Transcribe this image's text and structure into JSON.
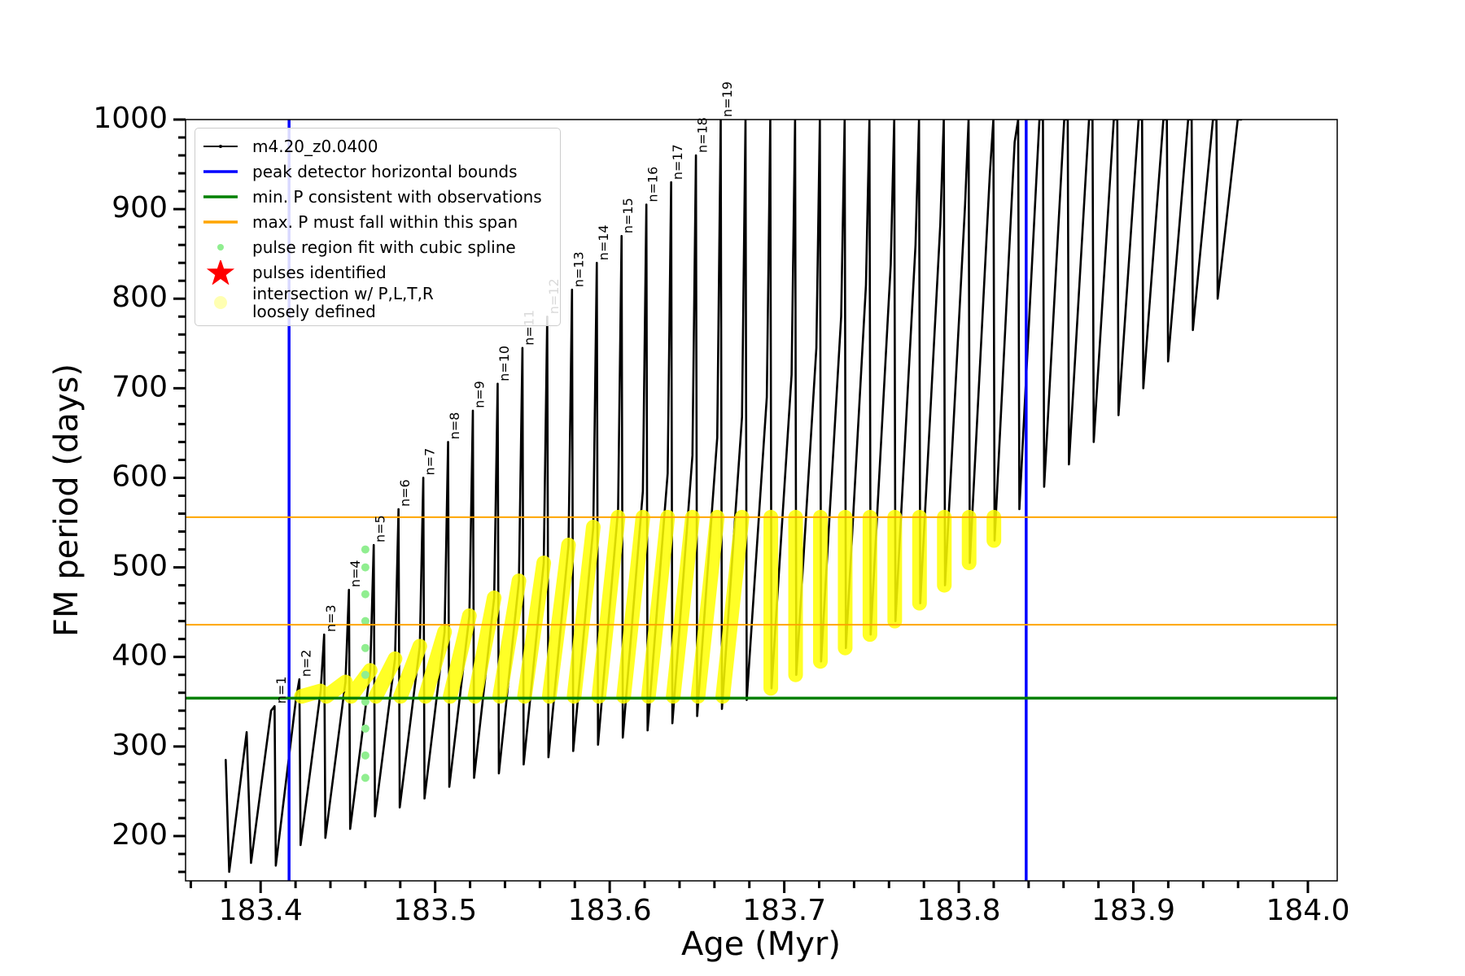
{
  "chart_data": {
    "type": "line",
    "x_label": "Age (Myr)",
    "y_label": "FM period (days)",
    "xlim": [
      183.357,
      184.0168
    ],
    "ylim": [
      150,
      1000
    ],
    "xticks": [
      183.4,
      183.5,
      183.6,
      183.7,
      183.8,
      183.9,
      {
        "value": 184,
        "label": "184.0"
      }
    ],
    "x_minor_ticks": [
      183.36,
      183.38,
      183.42,
      183.44,
      183.46,
      183.48,
      183.52,
      183.54,
      183.56,
      183.58,
      183.62,
      183.64,
      183.66,
      183.68,
      183.72,
      183.74,
      183.76,
      183.78,
      183.82,
      183.84,
      183.86,
      183.88,
      183.92,
      183.94,
      183.96,
      183.98
    ],
    "yticks": [
      200,
      300,
      400,
      500,
      600,
      700,
      800,
      900,
      1000
    ],
    "y_minor_ticks": [
      160,
      180,
      220,
      240,
      260,
      280,
      320,
      340,
      360,
      380,
      420,
      440,
      460,
      480,
      520,
      540,
      560,
      580,
      620,
      640,
      660,
      680,
      720,
      740,
      760,
      780,
      820,
      840,
      860,
      880,
      920,
      940,
      960,
      980
    ],
    "legend": "upper left",
    "pulse_labels": [
      "n=1",
      "n=2",
      "n=3",
      "n=4",
      "n=5",
      "n=6",
      "n=7",
      "n=8",
      "n=9",
      "n=10",
      "n=11",
      "n=12",
      "n=13",
      "n=14",
      "n=15",
      "n=16",
      "n=17",
      "n=18",
      "n=19"
    ],
    "series": [
      {
        "name": "m4.20_z0.0400",
        "type": "line",
        "color": "#000000",
        "marker": ".",
        "x": [
          183.38,
          183.382,
          183.392,
          183.3945,
          183.406,
          183.408,
          183.4087,
          183.4202,
          183.4222,
          183.4229,
          183.4344,
          183.4364,
          183.4371,
          183.4486,
          183.4506,
          183.4513,
          183.4628,
          183.4648,
          183.4655,
          183.477,
          183.479,
          183.4797,
          183.4912,
          183.4932,
          183.4939,
          183.5054,
          183.5074,
          183.5081,
          183.5196,
          183.5216,
          183.5223,
          183.5338,
          183.5358,
          183.5365,
          183.548,
          183.55,
          183.5507,
          183.5622,
          183.5642,
          183.5649,
          183.5764,
          183.5784,
          183.5791,
          183.5906,
          183.5926,
          183.5933,
          183.6048,
          183.6068,
          183.6075,
          183.619,
          183.621,
          183.6217,
          183.6332,
          183.6352,
          183.6359,
          183.6474,
          183.6494,
          183.6501,
          183.6616,
          183.6636,
          183.6643,
          183.6758,
          183.6778,
          183.6785,
          183.69,
          183.692,
          183.6927,
          183.7042,
          183.7062,
          183.7069,
          183.7184,
          183.7204,
          183.7211,
          183.7326,
          183.7346,
          183.7353,
          183.7468,
          183.7488,
          183.7495,
          183.761,
          183.763,
          183.7637,
          183.7752,
          183.7772,
          183.7779,
          183.7894,
          183.7914,
          183.7921,
          183.8036,
          183.8056,
          183.8063,
          183.8178,
          183.8198,
          183.8205,
          183.832,
          183.834,
          183.8347,
          183.8462,
          183.8482,
          183.8489,
          183.8604,
          183.8624,
          183.8631,
          183.8746,
          183.8766,
          183.8773,
          183.8888,
          183.8908,
          183.8915,
          183.903,
          183.905,
          183.9057,
          183.9172,
          183.9192,
          183.9199,
          183.9314,
          183.9334,
          183.9341,
          183.9456,
          183.9476,
          183.9483,
          183.9598,
          183.9618
        ],
        "values": [
          285,
          160,
          316,
          170,
          340,
          345,
          167,
          352,
          375,
          190,
          362,
          425,
          198,
          372,
          475,
          208,
          385,
          525,
          222,
          398,
          565,
          232,
          412,
          600,
          242,
          428,
          640,
          255,
          446,
          675,
          265,
          466,
          705,
          270,
          485,
          745,
          280,
          505,
          780,
          288,
          525,
          810,
          295,
          545,
          840,
          302,
          565,
          870,
          310,
          585,
          905,
          318,
          605,
          930,
          326,
          625,
          960,
          334,
          645,
          1000,
          342,
          668,
          1000,
          352,
          690,
          1000,
          365,
          715,
          1000,
          380,
          745,
          1000,
          395,
          780,
          1000,
          410,
          815,
          1000,
          425,
          838,
          1000,
          440,
          860,
          1000,
          460,
          883,
          1000,
          480,
          905,
          1000,
          505,
          940,
          1000,
          530,
          975,
          1000,
          565,
          1000,
          1000,
          590,
          1000,
          1000,
          615,
          1000,
          1000,
          640,
          1000,
          1000,
          670,
          1000,
          1000,
          700,
          1000,
          1000,
          730,
          1000,
          1000,
          765,
          1000,
          1000,
          800,
          1000,
          1000
        ]
      },
      {
        "name": "peak detector horizontal bounds",
        "type": "vline",
        "color": "#0000ff",
        "values": [
          183.4163,
          183.8386
        ]
      },
      {
        "name": "min. P consistent with observations",
        "type": "hline",
        "color": "#008000",
        "values": [
          354
        ]
      },
      {
        "name": "max. P must fall within this span",
        "type": "hline",
        "color": "#ffa500",
        "values": [
          436,
          556
        ]
      },
      {
        "name": "pulse region fit with cubic spline",
        "type": "scatter",
        "color": "#90ee90",
        "marker": "o",
        "x": [
          183.46,
          183.46,
          183.46,
          183.46,
          183.46,
          183.46,
          183.46,
          183.46,
          183.46,
          183.46
        ],
        "values": [
          265,
          290,
          320,
          350,
          380,
          410,
          440,
          470,
          500,
          520
        ]
      },
      {
        "name": "pulses identified",
        "type": "scatter",
        "color": "#ff0000",
        "marker": "*"
      },
      {
        "name": "intersection w/ P,L,T,R\nloosely defined",
        "type": "line",
        "color": "#ffff00",
        "marker": "o",
        "x": [
          183.4234,
          183.4344,
          null,
          183.4376,
          183.4486,
          null,
          183.4518,
          183.4628,
          null,
          183.466,
          183.477,
          null,
          183.4802,
          183.4912,
          null,
          183.4944,
          183.5054,
          null,
          183.5086,
          183.5196,
          null,
          183.5228,
          183.5338,
          null,
          183.537,
          183.548,
          null,
          183.5512,
          183.5622,
          null,
          183.5654,
          183.5764,
          null,
          183.5796,
          183.5906,
          null,
          183.5938,
          183.6048,
          null,
          183.608,
          183.619,
          null,
          183.6222,
          183.6332,
          null,
          183.6364,
          183.6474,
          null,
          183.6506,
          183.6616,
          null,
          183.6648,
          183.6758,
          null,
          183.6923,
          183.6923,
          null,
          183.7065,
          183.7065,
          null,
          183.7207,
          183.7207,
          null,
          183.7349,
          183.7349,
          null,
          183.7491,
          183.7491,
          null,
          183.7633,
          183.7633,
          null,
          183.7775,
          183.7775,
          null,
          183.7917,
          183.7917,
          null,
          183.8059,
          183.8059,
          null,
          183.8201,
          183.8201
        ],
        "values": [
          356,
          362,
          null,
          356,
          372,
          null,
          356,
          385,
          null,
          356,
          398,
          null,
          356,
          412,
          null,
          356,
          428,
          null,
          356,
          446,
          null,
          356,
          466,
          null,
          356,
          485,
          null,
          356,
          505,
          null,
          356,
          525,
          null,
          356,
          545,
          null,
          356,
          556,
          null,
          356,
          556,
          null,
          356,
          556,
          null,
          356,
          556,
          null,
          356,
          556,
          null,
          356,
          556,
          null,
          556,
          365,
          null,
          556,
          380,
          null,
          556,
          395,
          null,
          556,
          410,
          null,
          556,
          425,
          null,
          556,
          440,
          null,
          556,
          460,
          null,
          556,
          480,
          null,
          556,
          505,
          null,
          556,
          530
        ]
      }
    ]
  }
}
